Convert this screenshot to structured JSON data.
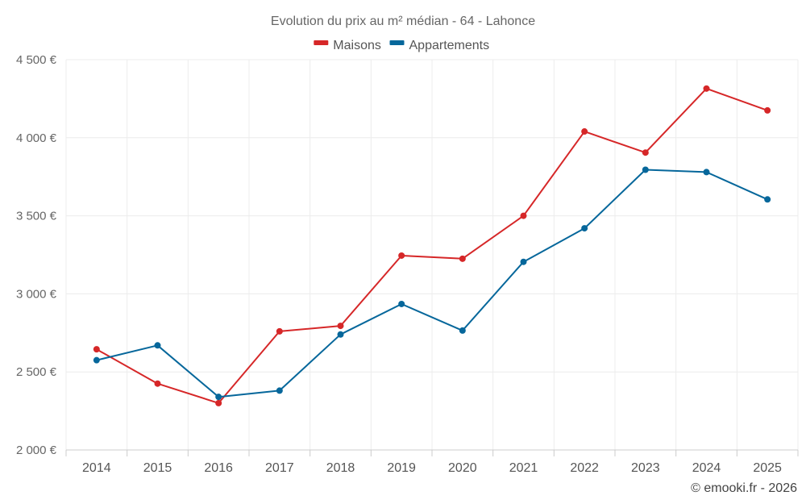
{
  "chart_data": {
    "type": "line",
    "title": "Evolution du prix au m² médian - 64 - Lahonce",
    "categories": [
      "2014",
      "2015",
      "2016",
      "2017",
      "2018",
      "2019",
      "2020",
      "2021",
      "2022",
      "2023",
      "2024",
      "2025"
    ],
    "series": [
      {
        "name": "Maisons",
        "color": "#d62728",
        "values": [
          2645,
          2425,
          2300,
          2760,
          2795,
          3245,
          3225,
          3500,
          4040,
          3905,
          4315,
          4175
        ]
      },
      {
        "name": "Appartements",
        "color": "#06679b",
        "values": [
          2575,
          2670,
          2340,
          2380,
          2740,
          2935,
          2765,
          3205,
          3420,
          3795,
          3780,
          3605
        ]
      }
    ],
    "ylim": [
      2000,
      4500
    ],
    "yticks": [
      2000,
      2500,
      3000,
      3500,
      4000,
      4500
    ],
    "ytick_labels": [
      "2 000 €",
      "2 500 €",
      "3 000 €",
      "3 500 €",
      "4 000 €",
      "4 500 €"
    ],
    "xlabel": "",
    "ylabel": "",
    "legend_position": "top-center",
    "grid": true
  },
  "credit": "© emooki.fr - 2026"
}
